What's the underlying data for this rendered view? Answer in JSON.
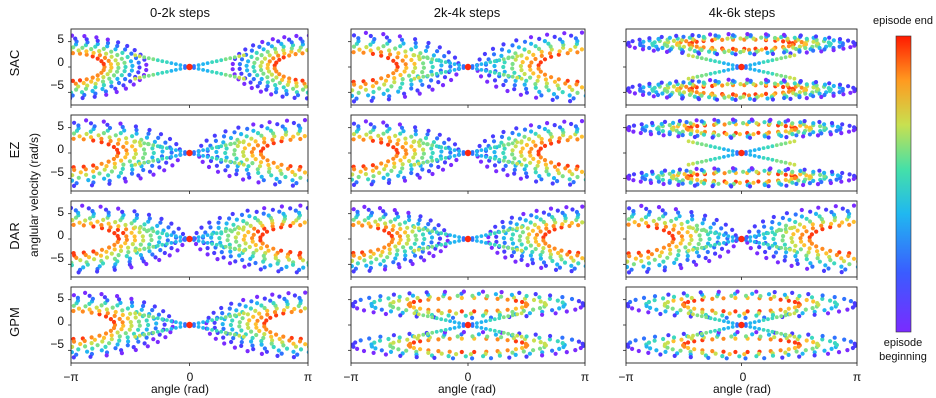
{
  "figure": {
    "ylabel": "anglular velocity (rad/s)",
    "colorbar": {
      "top_label": "episode end",
      "bottom_label_line1": "episode",
      "bottom_label_line2": "beginning"
    }
  },
  "columns": [
    "0-2k steps",
    "2k-4k steps",
    "4k-6k steps"
  ],
  "rows": [
    "SAC",
    "EZ",
    "DAR",
    "GPM"
  ],
  "xlabel": "angle (rad)",
  "x_ticks": [
    "−π",
    "0",
    "π"
  ],
  "y_ticks": [
    "5",
    "0",
    "−5"
  ],
  "colors": {
    "episode_end": "#ff1a00",
    "mid": "#45e0a8",
    "episode_beginning": "#7a2bff"
  },
  "chart_data": {
    "type": "scatter",
    "xlim": [
      -3.14159,
      3.14159
    ],
    "ylim": [
      -7.5,
      7.5
    ],
    "panels": [
      {
        "row": "SAC",
        "column": "0-2k steps",
        "trajectories": [
          {
            "name": "left-orbits",
            "center": [
              -3.14,
              0
            ],
            "amplitude_x": 2.0,
            "amplitude_y": 6.2,
            "rings": 7
          },
          {
            "name": "right-orbits",
            "center": [
              3.14,
              0
            ],
            "amplitude_x": 2.0,
            "amplitude_y": 6.2,
            "rings": 7
          }
        ]
      },
      {
        "row": "SAC",
        "column": "2k-4k steps",
        "trajectories": [
          {
            "name": "left-orbits",
            "center": [
              -3.14,
              0
            ],
            "amplitude_x": 2.9,
            "amplitude_y": 6.8,
            "rings": 8
          },
          {
            "name": "right-orbits",
            "center": [
              3.14,
              0
            ],
            "amplitude_x": 2.9,
            "amplitude_y": 6.8,
            "rings": 8
          }
        ]
      },
      {
        "row": "SAC",
        "column": "4k-6k steps",
        "trajectories": [
          {
            "name": "upper-band",
            "center": [
              0,
              4.5
            ],
            "amplitude_x": 3.1,
            "amplitude_y": 2.0,
            "rings": 6
          },
          {
            "name": "lower-band",
            "center": [
              0,
              -4.5
            ],
            "amplitude_x": 3.1,
            "amplitude_y": 2.0,
            "rings": 6
          }
        ]
      },
      {
        "row": "EZ",
        "column": "0-2k steps",
        "trajectories": [
          {
            "name": "left-orbits",
            "center": [
              -3.14,
              0
            ],
            "amplitude_x": 2.9,
            "amplitude_y": 6.5,
            "rings": 8
          },
          {
            "name": "right-orbits",
            "center": [
              3.14,
              0
            ],
            "amplitude_x": 2.9,
            "amplitude_y": 6.5,
            "rings": 8
          }
        ]
      },
      {
        "row": "EZ",
        "column": "2k-4k steps",
        "trajectories": [
          {
            "name": "left-orbits",
            "center": [
              -3.14,
              0
            ],
            "amplitude_x": 2.9,
            "amplitude_y": 6.3,
            "rings": 8
          },
          {
            "name": "right-orbits",
            "center": [
              3.14,
              0
            ],
            "amplitude_x": 2.9,
            "amplitude_y": 6.3,
            "rings": 8
          }
        ]
      },
      {
        "row": "EZ",
        "column": "4k-6k steps",
        "trajectories": [
          {
            "name": "upper-band",
            "center": [
              0,
              4.8
            ],
            "amplitude_x": 3.1,
            "amplitude_y": 1.8,
            "rings": 5
          },
          {
            "name": "lower-band",
            "center": [
              0,
              -4.8
            ],
            "amplitude_x": 3.1,
            "amplitude_y": 1.8,
            "rings": 5
          }
        ]
      },
      {
        "row": "DAR",
        "column": "0-2k steps",
        "trajectories": [
          {
            "name": "left-orbits",
            "center": [
              -3.14,
              0
            ],
            "amplitude_x": 3.0,
            "amplitude_y": 6.6,
            "rings": 9
          },
          {
            "name": "right-orbits",
            "center": [
              3.14,
              0
            ],
            "amplitude_x": 3.0,
            "amplitude_y": 6.6,
            "rings": 9
          }
        ]
      },
      {
        "row": "DAR",
        "column": "2k-4k steps",
        "trajectories": [
          {
            "name": "left-orbits",
            "center": [
              -3.14,
              0
            ],
            "amplitude_x": 2.6,
            "amplitude_y": 6.4,
            "rings": 8
          },
          {
            "name": "right-orbits",
            "center": [
              3.14,
              0
            ],
            "amplitude_x": 2.6,
            "amplitude_y": 6.4,
            "rings": 8
          }
        ]
      },
      {
        "row": "DAR",
        "column": "4k-6k steps",
        "trajectories": [
          {
            "name": "left-orbits",
            "center": [
              -3.14,
              0
            ],
            "amplitude_x": 3.0,
            "amplitude_y": 6.6,
            "rings": 8
          },
          {
            "name": "right-orbits",
            "center": [
              3.14,
              0
            ],
            "amplitude_x": 3.0,
            "amplitude_y": 6.6,
            "rings": 8
          }
        ]
      },
      {
        "row": "GPM",
        "column": "0-2k steps",
        "trajectories": [
          {
            "name": "left-orbits",
            "center": [
              -3.14,
              0
            ],
            "amplitude_x": 2.7,
            "amplitude_y": 6.4,
            "rings": 8
          },
          {
            "name": "right-orbits",
            "center": [
              3.14,
              0
            ],
            "amplitude_x": 2.7,
            "amplitude_y": 6.4,
            "rings": 8
          }
        ]
      },
      {
        "row": "GPM",
        "column": "2k-4k steps",
        "trajectories": [
          {
            "name": "upper-band",
            "center": [
              0,
              4.0
            ],
            "amplitude_x": 3.1,
            "amplitude_y": 2.6,
            "rings": 4
          },
          {
            "name": "lower-band",
            "center": [
              0,
              -4.0
            ],
            "amplitude_x": 3.1,
            "amplitude_y": 2.6,
            "rings": 4
          }
        ]
      },
      {
        "row": "GPM",
        "column": "4k-6k steps",
        "trajectories": [
          {
            "name": "upper-band",
            "center": [
              0,
              4.0
            ],
            "amplitude_x": 3.1,
            "amplitude_y": 2.6,
            "rings": 4
          },
          {
            "name": "lower-band",
            "center": [
              0,
              -4.0
            ],
            "amplitude_x": 3.1,
            "amplitude_y": 2.6,
            "rings": 4
          }
        ]
      }
    ]
  }
}
